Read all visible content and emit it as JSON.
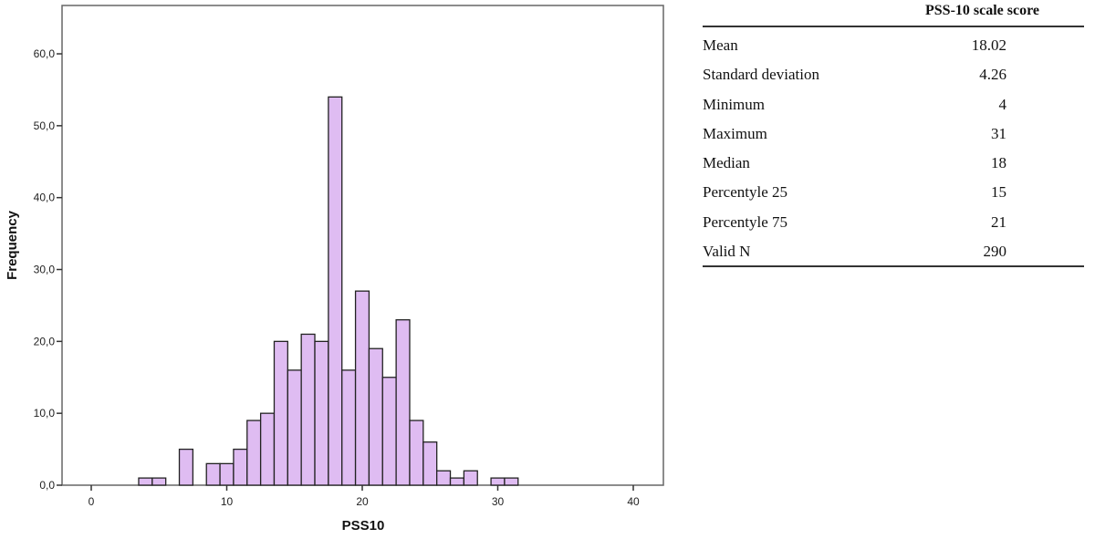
{
  "chart_data": {
    "type": "bar",
    "subtype": "histogram",
    "xlabel": "PSS10",
    "ylabel": "Frequency",
    "xlim": [
      -2,
      42
    ],
    "ylim": [
      0,
      66
    ],
    "x_ticks": [
      "0",
      "10",
      "20",
      "30",
      "40"
    ],
    "y_ticks": [
      "0,0",
      "10,0",
      "20,0",
      "30,0",
      "40,0",
      "50,0",
      "60,0"
    ],
    "bin_width": 1,
    "x": [
      4,
      5,
      6,
      7,
      8,
      9,
      10,
      11,
      12,
      13,
      14,
      15,
      16,
      17,
      18,
      19,
      20,
      21,
      22,
      23,
      24,
      25,
      26,
      27,
      28,
      29,
      30,
      31
    ],
    "values": [
      1,
      1,
      0,
      5,
      0,
      3,
      3,
      5,
      9,
      10,
      20,
      16,
      21,
      20,
      54,
      16,
      27,
      19,
      15,
      23,
      9,
      6,
      2,
      1,
      2,
      0,
      1,
      1
    ],
    "bar_color": "#dfbcf2",
    "edge_color": "#222222",
    "grid": false
  },
  "table": {
    "header": "PSS-10 scale score",
    "rows": [
      {
        "label": "Mean",
        "value": "18.02"
      },
      {
        "label": "Standard deviation",
        "value": "4.26"
      },
      {
        "label": "Minimum",
        "value": "4"
      },
      {
        "label": "Maximum",
        "value": "31"
      },
      {
        "label": "Median",
        "value": "18"
      },
      {
        "label": "Percentyle 25",
        "value": "15"
      },
      {
        "label": "Percentyle 75",
        "value": "21"
      },
      {
        "label": "Valid N",
        "value": "290"
      }
    ]
  }
}
